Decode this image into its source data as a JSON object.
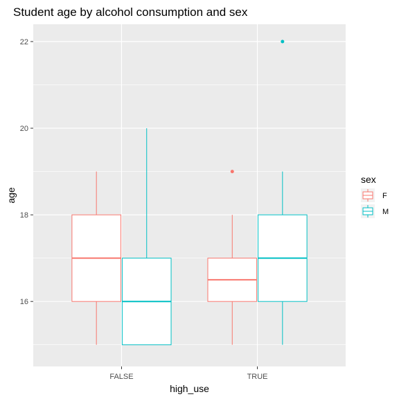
{
  "chart_data": {
    "type": "boxplot",
    "title": "Student age by alcohol consumption and sex",
    "xlabel": "high_use",
    "ylabel": "age",
    "categories": [
      "FALSE",
      "TRUE"
    ],
    "ylim": [
      14.5,
      22.4
    ],
    "y_ticks": [
      16,
      18,
      20,
      22
    ],
    "grid": true,
    "legend": {
      "title": "sex",
      "position": "right"
    },
    "series": [
      {
        "name": "F",
        "color": "#F8766D",
        "boxes": [
          {
            "category": "FALSE",
            "min": 15,
            "q1": 16,
            "median": 17,
            "q3": 18,
            "max": 19,
            "outliers": []
          },
          {
            "category": "TRUE",
            "min": 15,
            "q1": 16,
            "median": 16.5,
            "q3": 17,
            "max": 18,
            "outliers": [
              19
            ]
          }
        ]
      },
      {
        "name": "M",
        "color": "#00BFC4",
        "boxes": [
          {
            "category": "FALSE",
            "min": 15,
            "q1": 15,
            "median": 16,
            "q3": 17,
            "max": 20,
            "outliers": []
          },
          {
            "category": "TRUE",
            "min": 15,
            "q1": 16,
            "median": 17,
            "q3": 18,
            "max": 19,
            "outliers": [
              22
            ]
          }
        ]
      }
    ]
  }
}
